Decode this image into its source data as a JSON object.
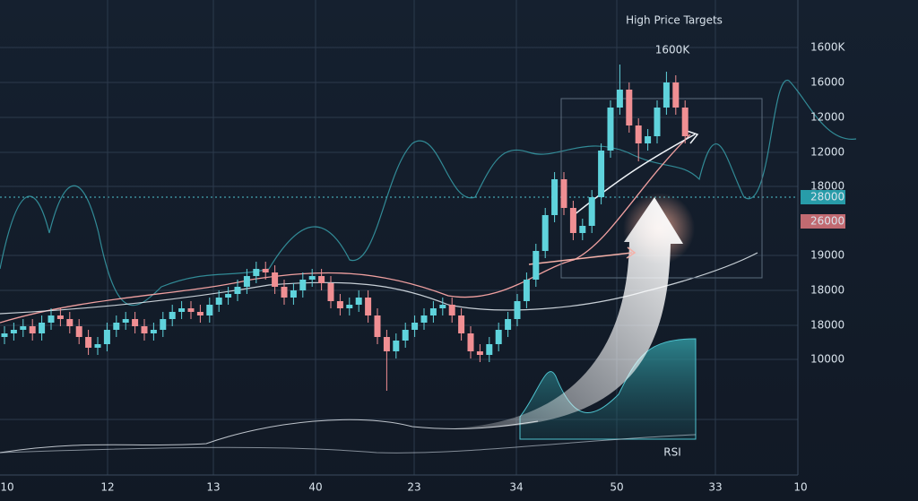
{
  "chart_data": {
    "type": "candlestick",
    "title": "High Price Targets",
    "target_label": "1600K",
    "indicator_label": "RSI",
    "price_labels": [
      "1600K",
      "16000",
      "12000",
      "12000",
      "18000",
      "28000",
      "26000",
      "19000",
      "18000",
      "18000",
      "10000"
    ],
    "x_labels": [
      "10",
      "12",
      "13",
      "40",
      "23",
      "34",
      "50",
      "33",
      "10"
    ],
    "ylim": [
      0,
      100
    ],
    "up_color": "#5fd3dc",
    "down_color": "#f08f93",
    "open": [
      16,
      17,
      18,
      19,
      17,
      20,
      22,
      21,
      19,
      16,
      13,
      14,
      18,
      20,
      21,
      19,
      17,
      18,
      21,
      23,
      24,
      23,
      22,
      25,
      27,
      28,
      30,
      33,
      35,
      34,
      30,
      27,
      29,
      32,
      33,
      31,
      26,
      24,
      25,
      27,
      22,
      16,
      12,
      15,
      18,
      20,
      22,
      24,
      25,
      22,
      17,
      12,
      11,
      14,
      18,
      21,
      26,
      32,
      40,
      50,
      60,
      52,
      45,
      47,
      55,
      68,
      80,
      85,
      75,
      70,
      72,
      80,
      87,
      80
    ],
    "high": [
      19,
      20,
      21,
      21,
      22,
      24,
      24,
      23,
      21,
      18,
      16,
      20,
      22,
      23,
      23,
      21,
      20,
      23,
      25,
      26,
      26,
      25,
      27,
      29,
      30,
      32,
      35,
      37,
      37,
      36,
      32,
      31,
      34,
      35,
      35,
      33,
      28,
      27,
      29,
      29,
      24,
      18,
      17,
      20,
      22,
      24,
      26,
      27,
      27,
      24,
      19,
      14,
      16,
      20,
      23,
      28,
      34,
      42,
      52,
      62,
      62,
      54,
      49,
      57,
      70,
      82,
      92,
      87,
      77,
      74,
      82,
      90,
      89,
      82
    ],
    "low": [
      14,
      15,
      16,
      15,
      15,
      18,
      19,
      17,
      14,
      11,
      11,
      12,
      16,
      18,
      17,
      15,
      15,
      16,
      19,
      21,
      21,
      20,
      20,
      23,
      25,
      26,
      28,
      31,
      32,
      28,
      25,
      25,
      27,
      30,
      29,
      24,
      22,
      22,
      23,
      20,
      14,
      1,
      10,
      13,
      16,
      18,
      20,
      22,
      20,
      15,
      10,
      9,
      9,
      12,
      16,
      19,
      24,
      30,
      38,
      48,
      50,
      43,
      43,
      45,
      53,
      66,
      78,
      73,
      65,
      68,
      70,
      78,
      78,
      70
    ],
    "close": [
      17,
      18,
      19,
      17,
      20,
      22,
      21,
      19,
      16,
      13,
      14,
      18,
      20,
      21,
      19,
      17,
      18,
      21,
      23,
      24,
      23,
      22,
      25,
      27,
      28,
      30,
      33,
      35,
      34,
      30,
      27,
      29,
      32,
      33,
      31,
      26,
      24,
      25,
      27,
      22,
      16,
      12,
      15,
      18,
      20,
      22,
      24,
      25,
      22,
      17,
      12,
      11,
      14,
      18,
      21,
      26,
      32,
      40,
      50,
      60,
      52,
      45,
      47,
      55,
      68,
      80,
      85,
      75,
      70,
      72,
      80,
      87,
      80,
      72
    ]
  }
}
